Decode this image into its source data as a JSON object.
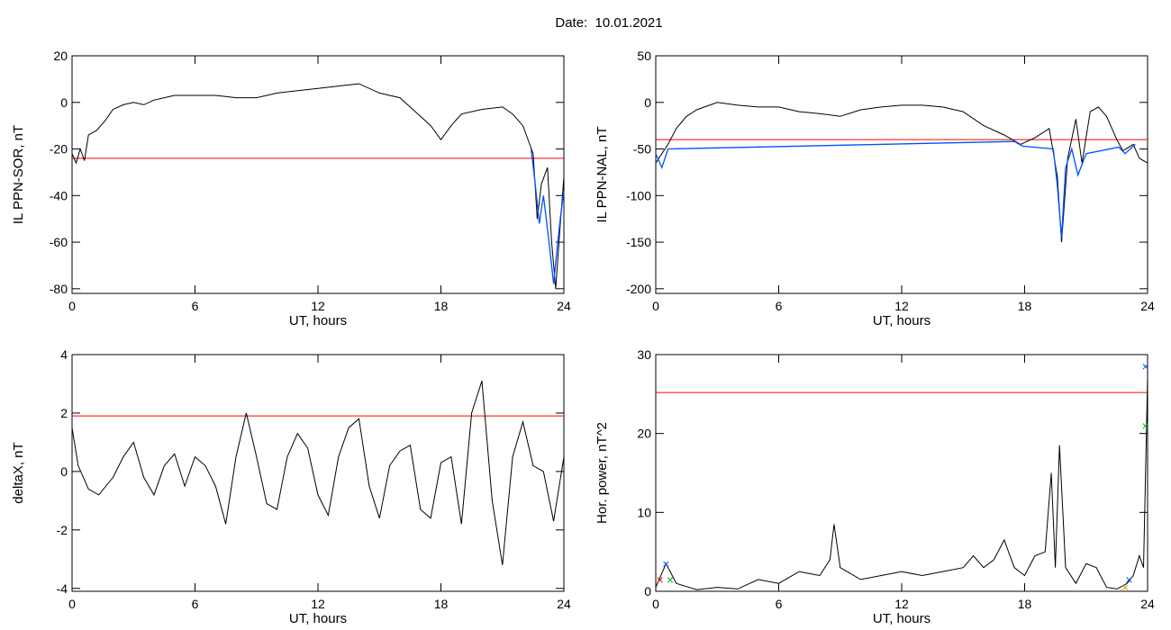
{
  "page": {
    "title": "Date:  10.01.2021"
  },
  "chart_data": [
    {
      "type": "line",
      "xlabel": "UT, hours",
      "ylabel": "IL PPN-SOR, nT",
      "xlim": [
        0,
        24
      ],
      "ylim": [
        -82,
        20
      ],
      "xticks": [
        0,
        6,
        12,
        18,
        24
      ],
      "yticks": [
        -80,
        -60,
        -40,
        -20,
        0,
        20
      ],
      "threshold": -24,
      "colors": {
        "line": "#000000",
        "threshold": "#ff0000",
        "highlight": "#0050ff"
      },
      "series": [
        {
          "values": [
            [
              0,
              -22
            ],
            [
              0.2,
              -26
            ],
            [
              0.4,
              -20
            ],
            [
              0.6,
              -25
            ],
            [
              0.8,
              -14
            ],
            [
              1.2,
              -12
            ],
            [
              1.6,
              -8
            ],
            [
              2.0,
              -3
            ],
            [
              2.5,
              -1
            ],
            [
              3,
              0
            ],
            [
              3.5,
              -1
            ],
            [
              4,
              1
            ],
            [
              4.5,
              2
            ],
            [
              5,
              3
            ],
            [
              6,
              3
            ],
            [
              7,
              3
            ],
            [
              8,
              2
            ],
            [
              9,
              2
            ],
            [
              10,
              4
            ],
            [
              11,
              5
            ],
            [
              12,
              6
            ],
            [
              13,
              7
            ],
            [
              14,
              8
            ],
            [
              15,
              4
            ],
            [
              16,
              2
            ],
            [
              17,
              -6
            ],
            [
              17.5,
              -10
            ],
            [
              18,
              -16
            ],
            [
              18.5,
              -10
            ],
            [
              19,
              -5
            ],
            [
              20,
              -3
            ],
            [
              21,
              -2
            ],
            [
              21.5,
              -5
            ],
            [
              22,
              -10
            ],
            [
              22.5,
              -22
            ],
            [
              22.7,
              -50
            ],
            [
              22.9,
              -35
            ],
            [
              23.2,
              -28
            ],
            [
              23.4,
              -60
            ],
            [
              23.6,
              -80
            ],
            [
              23.8,
              -55
            ],
            [
              24,
              -32
            ]
          ]
        }
      ],
      "highlight": [
        [
          22.4,
          -20
        ],
        [
          22.6,
          -35
        ],
        [
          22.8,
          -52
        ],
        [
          23.0,
          -40
        ],
        [
          23.3,
          -62
        ],
        [
          23.5,
          -78
        ],
        [
          23.7,
          -60
        ],
        [
          23.85,
          -48
        ],
        [
          24,
          -38
        ]
      ]
    },
    {
      "type": "line",
      "xlabel": "UT, hours",
      "ylabel": "IL PPN-NAL, nT",
      "xlim": [
        0,
        24
      ],
      "ylim": [
        -205,
        50
      ],
      "xticks": [
        0,
        6,
        12,
        18,
        24
      ],
      "yticks": [
        -200,
        -150,
        -100,
        -50,
        0,
        50
      ],
      "threshold": -40,
      "colors": {
        "line": "#000000",
        "threshold": "#ff0000",
        "highlight": "#0050ff"
      },
      "series": [
        {
          "values": [
            [
              0,
              -65
            ],
            [
              0.3,
              -55
            ],
            [
              0.6,
              -45
            ],
            [
              1,
              -28
            ],
            [
              1.5,
              -15
            ],
            [
              2,
              -8
            ],
            [
              3,
              0
            ],
            [
              4,
              -3
            ],
            [
              5,
              -5
            ],
            [
              6,
              -5
            ],
            [
              7,
              -10
            ],
            [
              8,
              -12
            ],
            [
              9,
              -15
            ],
            [
              10,
              -8
            ],
            [
              11,
              -5
            ],
            [
              12,
              -3
            ],
            [
              13,
              -3
            ],
            [
              14,
              -5
            ],
            [
              15,
              -10
            ],
            [
              16,
              -25
            ],
            [
              17,
              -35
            ],
            [
              17.8,
              -45
            ],
            [
              18.5,
              -38
            ],
            [
              19.2,
              -28
            ],
            [
              19.6,
              -80
            ],
            [
              19.8,
              -150
            ],
            [
              20.1,
              -60
            ],
            [
              20.5,
              -18
            ],
            [
              20.8,
              -65
            ],
            [
              21.2,
              -10
            ],
            [
              21.6,
              -5
            ],
            [
              22,
              -15
            ],
            [
              22.5,
              -40
            ],
            [
              22.8,
              -52
            ],
            [
              23.3,
              -45
            ],
            [
              23.6,
              -60
            ],
            [
              24,
              -65
            ]
          ]
        }
      ],
      "highlight": [
        [
          0,
          -55
        ],
        [
          0.3,
          -70
        ],
        [
          0.6,
          -50
        ],
        [
          17.5,
          -42
        ],
        [
          17.9,
          -47
        ],
        [
          19.4,
          -50
        ],
        [
          19.6,
          -90
        ],
        [
          19.8,
          -145
        ],
        [
          20.0,
          -70
        ],
        [
          20.3,
          -50
        ],
        [
          20.6,
          -78
        ],
        [
          21.0,
          -55
        ],
        [
          22.6,
          -48
        ],
        [
          22.9,
          -55
        ],
        [
          23.4,
          -45
        ]
      ]
    },
    {
      "type": "line",
      "xlabel": "UT, hours",
      "ylabel": "deltaX, nT",
      "xlim": [
        0,
        24
      ],
      "ylim": [
        -4.1,
        4
      ],
      "xticks": [
        0,
        6,
        12,
        18,
        24
      ],
      "yticks": [
        -4,
        -2,
        0,
        2,
        4
      ],
      "threshold": 1.9,
      "colors": {
        "line": "#000000",
        "threshold": "#ff0000"
      },
      "series": [
        {
          "values": [
            [
              0,
              1.5
            ],
            [
              0.3,
              0.2
            ],
            [
              0.8,
              -0.6
            ],
            [
              1.3,
              -0.8
            ],
            [
              2,
              -0.2
            ],
            [
              2.5,
              0.5
            ],
            [
              3,
              1.0
            ],
            [
              3.5,
              -0.2
            ],
            [
              4,
              -0.8
            ],
            [
              4.5,
              0.2
            ],
            [
              5,
              0.6
            ],
            [
              5.5,
              -0.5
            ],
            [
              6,
              0.5
            ],
            [
              6.5,
              0.2
            ],
            [
              7,
              -0.5
            ],
            [
              7.5,
              -1.8
            ],
            [
              8,
              0.5
            ],
            [
              8.5,
              2.0
            ],
            [
              9,
              0.5
            ],
            [
              9.5,
              -1.1
            ],
            [
              10,
              -1.3
            ],
            [
              10.5,
              0.5
            ],
            [
              11,
              1.3
            ],
            [
              11.5,
              0.8
            ],
            [
              12,
              -0.8
            ],
            [
              12.5,
              -1.5
            ],
            [
              13,
              0.5
            ],
            [
              13.5,
              1.5
            ],
            [
              14,
              1.8
            ],
            [
              14.5,
              -0.5
            ],
            [
              15,
              -1.6
            ],
            [
              15.5,
              0.2
            ],
            [
              16,
              0.7
            ],
            [
              16.5,
              0.9
            ],
            [
              17,
              -1.3
            ],
            [
              17.5,
              -1.6
            ],
            [
              18,
              0.3
            ],
            [
              18.5,
              0.5
            ],
            [
              19,
              -1.8
            ],
            [
              19.5,
              2.0
            ],
            [
              20,
              3.1
            ],
            [
              20.5,
              -1.0
            ],
            [
              21,
              -3.2
            ],
            [
              21.5,
              0.5
            ],
            [
              22,
              1.7
            ],
            [
              22.5,
              0.2
            ],
            [
              23,
              0.0
            ],
            [
              23.5,
              -1.7
            ],
            [
              24,
              0.5
            ]
          ]
        }
      ]
    },
    {
      "type": "line",
      "xlabel": "UT, hours",
      "ylabel": "Hor. power, nT^2",
      "xlim": [
        0,
        24
      ],
      "ylim": [
        0,
        30
      ],
      "xticks": [
        0,
        6,
        12,
        18,
        24
      ],
      "yticks": [
        0,
        10,
        20,
        30
      ],
      "threshold": 25.2,
      "colors": {
        "line": "#000000",
        "threshold": "#ff0000"
      },
      "series": [
        {
          "values": [
            [
              0,
              0.5
            ],
            [
              0.5,
              3.5
            ],
            [
              1,
              1.0
            ],
            [
              2,
              0.2
            ],
            [
              3,
              0.5
            ],
            [
              4,
              0.3
            ],
            [
              5,
              1.5
            ],
            [
              6,
              1.0
            ],
            [
              7,
              2.5
            ],
            [
              8,
              2.0
            ],
            [
              8.5,
              4.0
            ],
            [
              8.7,
              8.5
            ],
            [
              9,
              3.0
            ],
            [
              10,
              1.5
            ],
            [
              11,
              2.0
            ],
            [
              12,
              2.5
            ],
            [
              13,
              2.0
            ],
            [
              14,
              2.5
            ],
            [
              15,
              3.0
            ],
            [
              15.5,
              4.5
            ],
            [
              16,
              3.0
            ],
            [
              16.5,
              4.0
            ],
            [
              17,
              6.5
            ],
            [
              17.5,
              3.0
            ],
            [
              18,
              2.0
            ],
            [
              18.5,
              4.5
            ],
            [
              19,
              5.0
            ],
            [
              19.3,
              15.0
            ],
            [
              19.5,
              3.0
            ],
            [
              19.7,
              18.5
            ],
            [
              20,
              3.0
            ],
            [
              20.5,
              1.0
            ],
            [
              21,
              3.5
            ],
            [
              21.5,
              3.0
            ],
            [
              22,
              0.5
            ],
            [
              22.5,
              0.3
            ],
            [
              23,
              1.0
            ],
            [
              23.3,
              2.0
            ],
            [
              23.6,
              4.5
            ],
            [
              23.8,
              3.0
            ],
            [
              24,
              27.0
            ]
          ]
        }
      ],
      "markers": [
        {
          "symbol": "×",
          "color": "#0050ff",
          "x": 0.5,
          "y": 3.5
        },
        {
          "symbol": "×",
          "color": "#ff0000",
          "x": 0.2,
          "y": 1.5
        },
        {
          "symbol": "×",
          "color": "#00b000",
          "x": 0.7,
          "y": 1.5
        },
        {
          "symbol": "×",
          "color": "#0050ff",
          "x": 23.1,
          "y": 1.5
        },
        {
          "symbol": "×",
          "color": "#ccaa00",
          "x": 22.9,
          "y": 0.5
        },
        {
          "symbol": "×",
          "color": "#0050ff",
          "x": 23.9,
          "y": 28.5
        },
        {
          "symbol": "×",
          "color": "#00b000",
          "x": 23.9,
          "y": 21.0
        }
      ]
    }
  ]
}
